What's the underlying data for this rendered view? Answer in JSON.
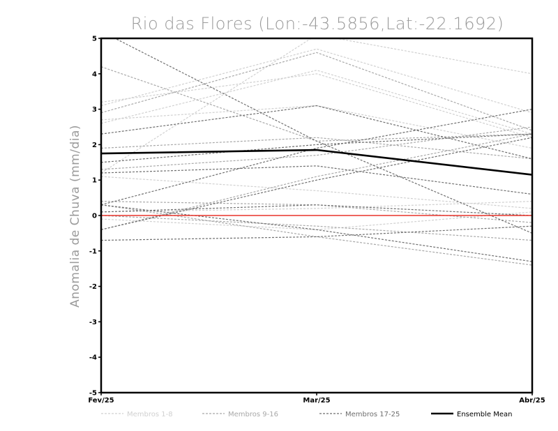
{
  "chart_data": {
    "type": "line",
    "title": "Rio das Flores (Lon:-43.5856,Lat:-22.1692)",
    "xlabel": "",
    "ylabel": "Anomalia de Chuva (mm/dia)",
    "categories": [
      "Fev/25",
      "Mar/25",
      "Abr/25"
    ],
    "ylim": [
      -5,
      5
    ],
    "yticks": [
      "5",
      "4",
      "3",
      "2",
      "1",
      "0",
      "-1",
      "-2",
      "-3",
      "-4",
      "-5"
    ],
    "zero_line_color": "#e8332a",
    "groups": [
      {
        "name": "Membros 1-8",
        "color": "#d0d0d0",
        "series": [
          {
            "values": [
              3.1,
              4.7,
              2.9
            ]
          },
          {
            "values": [
              2.6,
              4.1,
              2.3
            ]
          },
          {
            "values": [
              1.2,
              5.1,
              4.0
            ]
          },
          {
            "values": [
              2.7,
              3.1,
              1.9
            ]
          },
          {
            "values": [
              0.1,
              0.2,
              0.4
            ]
          },
          {
            "values": [
              -0.1,
              -0.4,
              0.1
            ]
          },
          {
            "values": [
              3.2,
              4.0,
              2.2
            ]
          },
          {
            "values": [
              1.1,
              0.7,
              0.2
            ]
          }
        ]
      },
      {
        "name": "Membros 9-16",
        "color": "#a8a8a8",
        "series": [
          {
            "values": [
              4.2,
              2.1,
              2.3
            ]
          },
          {
            "values": [
              1.9,
              2.2,
              1.6
            ]
          },
          {
            "values": [
              0.4,
              0.3,
              -0.2
            ]
          },
          {
            "values": [
              -0.4,
              1.1,
              2.3
            ]
          },
          {
            "values": [
              2.9,
              4.6,
              2.4
            ]
          },
          {
            "values": [
              1.3,
              1.7,
              2.5
            ]
          },
          {
            "values": [
              0.0,
              -0.3,
              -0.7
            ]
          },
          {
            "values": [
              0.3,
              -0.6,
              -1.4
            ]
          }
        ]
      },
      {
        "name": "Membros 17-25",
        "color": "#6e6e6e",
        "series": [
          {
            "values": [
              2.3,
              3.1,
              1.6
            ]
          },
          {
            "values": [
              1.5,
              2.0,
              2.3
            ]
          },
          {
            "values": [
              0.3,
              1.9,
              3.0
            ]
          },
          {
            "values": [
              1.2,
              1.4,
              0.6
            ]
          },
          {
            "values": [
              0.1,
              0.3,
              0.0
            ]
          },
          {
            "values": [
              -0.7,
              -0.6,
              -0.3
            ]
          },
          {
            "values": [
              -0.4,
              1.0,
              2.2
            ]
          },
          {
            "values": [
              5.2,
              2.1,
              -0.5
            ]
          },
          {
            "values": [
              0.3,
              -0.4,
              -1.3
            ]
          }
        ]
      }
    ],
    "mean": {
      "name": "Ensemble Mean",
      "color": "#000000",
      "values": [
        1.75,
        1.85,
        1.15
      ]
    },
    "legend_position": "bottom"
  }
}
